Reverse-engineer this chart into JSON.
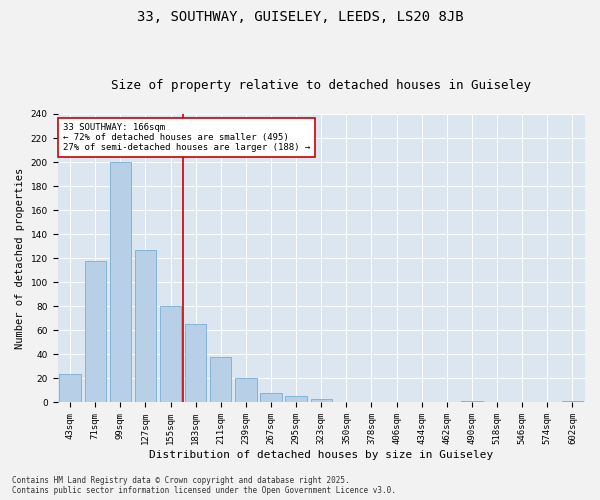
{
  "title1": "33, SOUTHWAY, GUISELEY, LEEDS, LS20 8JB",
  "title2": "Size of property relative to detached houses in Guiseley",
  "xlabel": "Distribution of detached houses by size in Guiseley",
  "ylabel": "Number of detached properties",
  "categories": [
    "43sqm",
    "71sqm",
    "99sqm",
    "127sqm",
    "155sqm",
    "183sqm",
    "211sqm",
    "239sqm",
    "267sqm",
    "295sqm",
    "323sqm",
    "350sqm",
    "378sqm",
    "406sqm",
    "434sqm",
    "462sqm",
    "490sqm",
    "518sqm",
    "546sqm",
    "574sqm",
    "602sqm"
  ],
  "values": [
    24,
    118,
    200,
    127,
    80,
    65,
    38,
    20,
    8,
    5,
    3,
    0,
    0,
    0,
    0,
    0,
    1,
    0,
    0,
    0,
    1
  ],
  "bar_color": "#b8cfe8",
  "bar_edge_color": "#7aadd4",
  "background_color": "#dce6f0",
  "fig_background": "#f2f2f2",
  "vline_color": "#cc0000",
  "annotation_title": "33 SOUTHWAY: 166sqm",
  "annotation_line1": "← 72% of detached houses are smaller (495)",
  "annotation_line2": "27% of semi-detached houses are larger (188) →",
  "annotation_box_color": "#ffffff",
  "annotation_box_edge": "#cc0000",
  "ylim": [
    0,
    240
  ],
  "yticks": [
    0,
    20,
    40,
    60,
    80,
    100,
    120,
    140,
    160,
    180,
    200,
    220,
    240
  ],
  "footer1": "Contains HM Land Registry data © Crown copyright and database right 2025.",
  "footer2": "Contains public sector information licensed under the Open Government Licence v3.0.",
  "title1_fontsize": 10,
  "title2_fontsize": 9,
  "xlabel_fontsize": 8,
  "ylabel_fontsize": 7.5,
  "tick_fontsize": 6.5,
  "annotation_fontsize": 6.5,
  "footer_fontsize": 5.5
}
